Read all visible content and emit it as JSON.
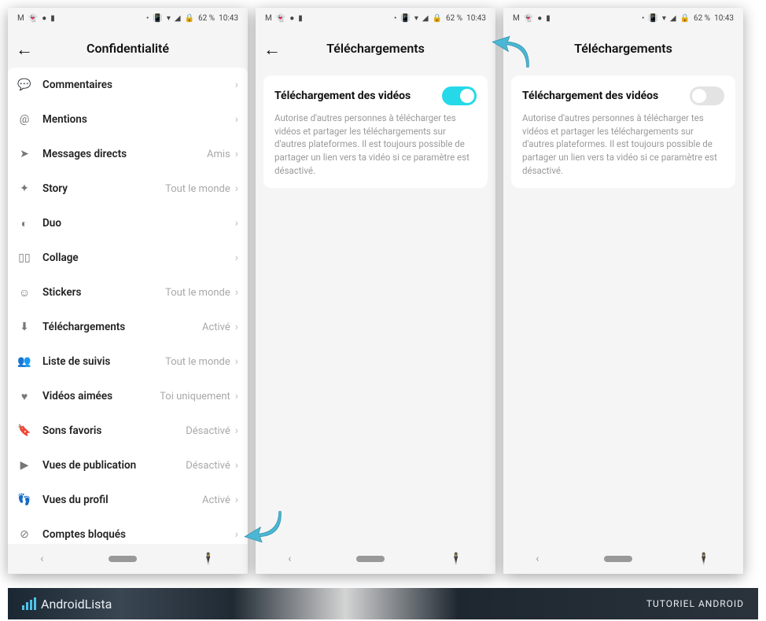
{
  "status": {
    "battery": "62 %",
    "time": "10:43"
  },
  "screen1": {
    "title": "Confidentialité",
    "items": [
      {
        "icon": "💬",
        "label": "Commentaires",
        "value": ""
      },
      {
        "icon": "@",
        "label": "Mentions",
        "value": ""
      },
      {
        "icon": "➤",
        "label": "Messages directs",
        "value": "Amis"
      },
      {
        "icon": "✦",
        "label": "Story",
        "value": "Tout le monde"
      },
      {
        "icon": "◐",
        "label": "Duo",
        "value": ""
      },
      {
        "icon": "▯▯",
        "label": "Collage",
        "value": ""
      },
      {
        "icon": "☺",
        "label": "Stickers",
        "value": "Tout le monde"
      },
      {
        "icon": "⬇",
        "label": "Téléchargements",
        "value": "Activé"
      },
      {
        "icon": "👥",
        "label": "Liste de suivis",
        "value": "Tout le monde"
      },
      {
        "icon": "♥",
        "label": "Vidéos aimées",
        "value": "Toi uniquement"
      },
      {
        "icon": "🔖",
        "label": "Sons favoris",
        "value": "Désactivé"
      },
      {
        "icon": "▶",
        "label": "Vues de publication",
        "value": "Désactivé"
      },
      {
        "icon": "👣",
        "label": "Vues du profil",
        "value": "Activé"
      },
      {
        "icon": "⊘",
        "label": "Comptes bloqués",
        "value": ""
      }
    ]
  },
  "screen2": {
    "title": "Téléchargements",
    "card_title": "Téléchargement des vidéos",
    "card_desc": "Autorise d'autres personnes à télécharger tes vidéos et partager les téléchargements sur d'autres plateformes. Il est toujours possible de partager un lien vers ta vidéo si ce paramètre est désactivé.",
    "toggle": "on"
  },
  "screen3": {
    "title": "Téléchargements",
    "card_title": "Téléchargement des vidéos",
    "card_desc": "Autorise d'autres personnes à télécharger tes vidéos et partager les téléchargements sur d'autres plateformes. Il est toujours possible de partager un lien vers ta vidéo si ce paramètre est désactivé.",
    "toggle": "off"
  },
  "footer": {
    "brand": "AndroidLista",
    "tag": "TUTORIEL ANDROID"
  },
  "colors": {
    "accent": "#25d9e8",
    "arrow": "#4bb7d4"
  }
}
